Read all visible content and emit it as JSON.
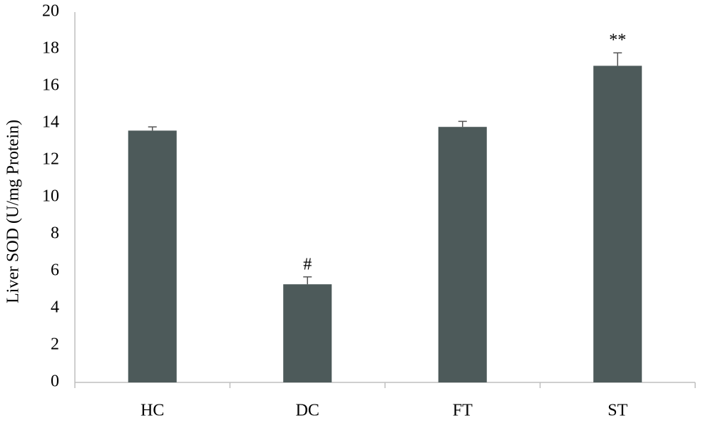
{
  "chart_data": {
    "type": "bar",
    "y_label": "Liver SOD (U/mg Protein)",
    "categories": [
      "HC",
      "DC",
      "FT",
      "ST"
    ],
    "values": [
      13.6,
      5.3,
      13.8,
      17.1
    ],
    "errors": [
      0.2,
      0.4,
      0.3,
      0.7
    ],
    "annotations": [
      {
        "text": "#",
        "category": "DC"
      },
      {
        "text": "**",
        "category": "ST"
      }
    ],
    "color": "#4d5a5a",
    "ylim": [
      0,
      20
    ],
    "yticks": [
      0,
      2,
      4,
      6,
      8,
      10,
      12,
      14,
      16,
      18,
      20
    ],
    "grid": false
  }
}
